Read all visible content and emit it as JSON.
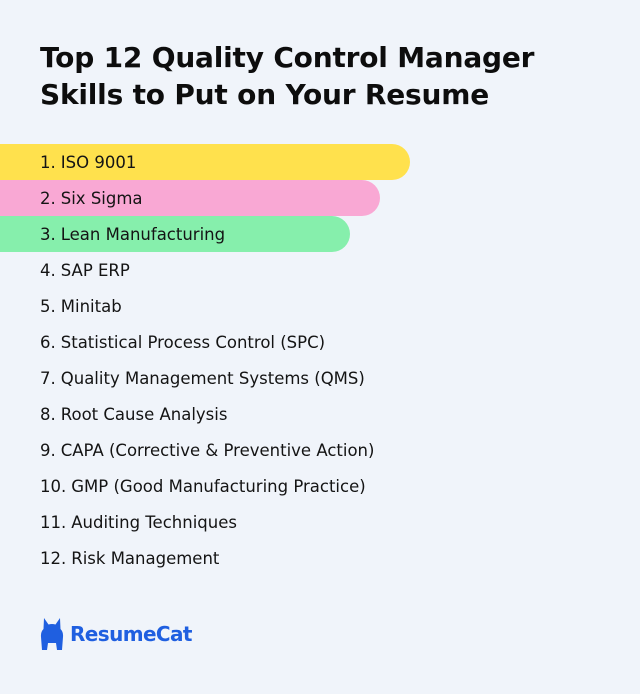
{
  "title": {
    "line1": "Top 12 Quality Control Manager",
    "line2": "Skills to Put on Your Resume"
  },
  "skills": [
    {
      "num": "1.",
      "label": "ISO 9001",
      "highlight": "#ffe14d"
    },
    {
      "num": "2.",
      "label": "Six Sigma",
      "highlight": "#f9a8d4"
    },
    {
      "num": "3.",
      "label": "Lean Manufacturing",
      "highlight": "#86efac"
    },
    {
      "num": "4.",
      "label": "SAP ERP",
      "highlight": null
    },
    {
      "num": "5.",
      "label": "Minitab",
      "highlight": null
    },
    {
      "num": "6.",
      "label": "Statistical Process Control (SPC)",
      "highlight": null
    },
    {
      "num": "7.",
      "label": "Quality Management Systems (QMS)",
      "highlight": null
    },
    {
      "num": "8.",
      "label": "Root Cause Analysis",
      "highlight": null
    },
    {
      "num": "9.",
      "label": "CAPA (Corrective & Preventive Action)",
      "highlight": null
    },
    {
      "num": "10.",
      "label": "GMP (Good Manufacturing Practice)",
      "highlight": null
    },
    {
      "num": "11.",
      "label": "Auditing Techniques",
      "highlight": null
    },
    {
      "num": "12.",
      "label": "Risk Management",
      "highlight": null
    }
  ],
  "brand": {
    "name": "ResumeCat",
    "icon": "cat-icon",
    "color": "#1f5fe0"
  },
  "colors": {
    "background": "#f0f4fa",
    "text": "#111111"
  }
}
